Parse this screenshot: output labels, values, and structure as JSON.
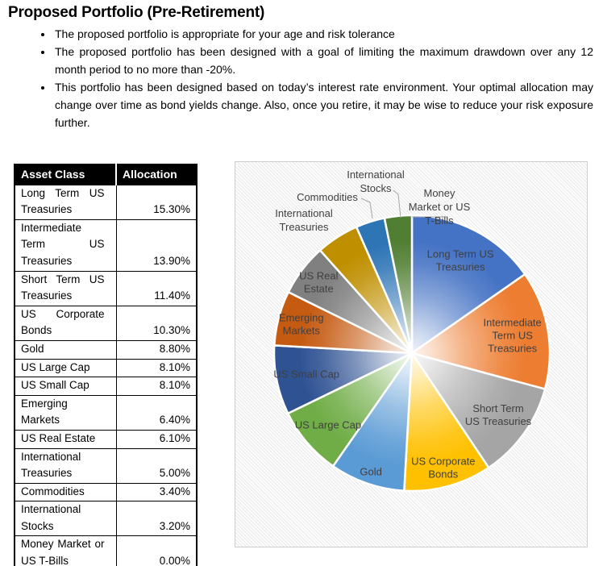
{
  "document": {
    "title": "Proposed Portfolio (Pre-Retirement)",
    "bullets": [
      "The proposed portfolio is appropriate for your age and risk tolerance",
      "The proposed portfolio has been designed with a goal of limiting the maximum drawdown over any 12 month period to no more than -20%.",
      "This portfolio has been designed based on today’s interest rate environment. Your optimal allocation may change over time as bond yields change. Also, once you retire, it may be wise to reduce your risk exposure further."
    ]
  },
  "table": {
    "headers": [
      "Asset Class",
      "Allocation"
    ],
    "rows": [
      {
        "asset_class": "Long Term US Treasuries",
        "allocation": "15.30%"
      },
      {
        "asset_class": "Intermediate Term US Treasuries",
        "allocation": "13.90%"
      },
      {
        "asset_class": "Short Term US Treasuries",
        "allocation": "11.40%"
      },
      {
        "asset_class": "US Corporate Bonds",
        "allocation": "10.30%"
      },
      {
        "asset_class": "Gold",
        "allocation": "8.80%"
      },
      {
        "asset_class": "US Large Cap",
        "allocation": "8.10%"
      },
      {
        "asset_class": "US Small Cap",
        "allocation": "8.10%"
      },
      {
        "asset_class": "Emerging Markets",
        "allocation": "6.40%"
      },
      {
        "asset_class": "US Real Estate",
        "allocation": "6.10%"
      },
      {
        "asset_class": "International Treasuries",
        "allocation": "5.00%"
      },
      {
        "asset_class": "Commodities",
        "allocation": "3.40%"
      },
      {
        "asset_class": "International Stocks",
        "allocation": "3.20%"
      },
      {
        "asset_class": "Money Market or US T-Bills",
        "allocation": "0.00%"
      }
    ]
  },
  "chart_data": {
    "type": "pie",
    "title": "",
    "start_angle_deg": 0,
    "direction": "clockwise",
    "background_pattern": "light-diagonal-hatch",
    "label_color": "#404040",
    "leader_line_color": "#a6a6a6",
    "slices": [
      {
        "label": "Long Term US Treasuries",
        "value": 15.3,
        "color": "#4472C4",
        "label_lines": [
          "Long Term US",
          "Treasuries"
        ],
        "label_position": "inside"
      },
      {
        "label": "Intermediate Term US Treasuries",
        "value": 13.9,
        "color": "#ED7D31",
        "label_lines": [
          "Intermediate",
          "Term US",
          "Treasuries"
        ],
        "label_position": "inside"
      },
      {
        "label": "Short Term US Treasuries",
        "value": 11.4,
        "color": "#A5A5A5",
        "label_lines": [
          "Short Term",
          "US Treasuries"
        ],
        "label_position": "inside"
      },
      {
        "label": "US Corporate Bonds",
        "value": 10.3,
        "color": "#FFC000",
        "label_lines": [
          "US Corporate",
          "Bonds"
        ],
        "label_position": "inside"
      },
      {
        "label": "Gold",
        "value": 8.8,
        "color": "#5B9BD5",
        "label_lines": [
          "Gold"
        ],
        "label_position": "inside"
      },
      {
        "label": "US Large Cap",
        "value": 8.1,
        "color": "#70AD47",
        "label_lines": [
          "US Large Cap"
        ],
        "label_position": "inside"
      },
      {
        "label": "US Small Cap",
        "value": 8.1,
        "color": "#2F5293",
        "label_lines": [
          "US Small Cap"
        ],
        "label_position": "inside"
      },
      {
        "label": "Emerging Markets",
        "value": 6.4,
        "color": "#C55A11",
        "label_lines": [
          "Emerging",
          "Markets"
        ],
        "label_position": "inside"
      },
      {
        "label": "US Real Estate",
        "value": 6.1,
        "color": "#808080",
        "label_lines": [
          "US Real",
          "Estate"
        ],
        "label_position": "inside"
      },
      {
        "label": "International Treasuries",
        "value": 5.0,
        "color": "#BF8F00",
        "label_lines": [
          "International",
          "Treasuries"
        ],
        "label_position": "outside"
      },
      {
        "label": "Commodities",
        "value": 3.4,
        "color": "#2E75B6",
        "label_lines": [
          "Commodities"
        ],
        "label_position": "outside"
      },
      {
        "label": "International Stocks",
        "value": 3.2,
        "color": "#507E32",
        "label_lines": [
          "International",
          "Stocks"
        ],
        "label_position": "outside"
      },
      {
        "label": "Money Market or US T-Bills",
        "value": 0.0,
        "color": "#4472C4",
        "label_lines": [
          "Money",
          "Market or US",
          "T-Bills"
        ],
        "label_position": "outside"
      }
    ]
  }
}
